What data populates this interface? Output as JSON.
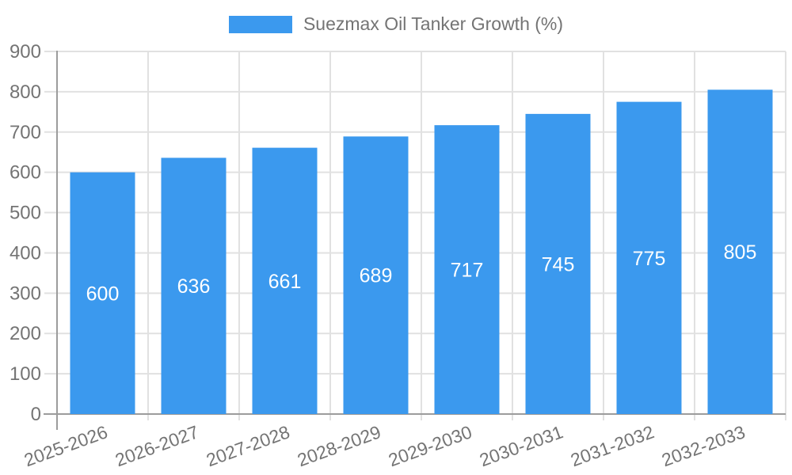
{
  "legend": {
    "label": "Suezmax Oil Tanker Growth (%)",
    "position": "top"
  },
  "chart_data": {
    "type": "bar",
    "title": "Suezmax Oil Tanker Growth (%)",
    "series_name": "Suezmax Oil Tanker Growth (%)",
    "categories": [
      "2025-2026",
      "2026-2027",
      "2027-2028",
      "2028-2029",
      "2029-2030",
      "2030-2031",
      "2031-2032",
      "2032-2033"
    ],
    "values": [
      600,
      636,
      661,
      689,
      717,
      745,
      775,
      805
    ],
    "value_labels": [
      "600",
      "636",
      "661",
      "689",
      "717",
      "745",
      "775",
      "805"
    ],
    "xlabel": "",
    "ylabel": "",
    "ylim": [
      0,
      900
    ],
    "ytick_step": 100,
    "yticks": [
      0,
      100,
      200,
      300,
      400,
      500,
      600,
      700,
      800,
      900
    ],
    "grid": true,
    "legend_position": "top",
    "x_label_rotation": -20,
    "colors": {
      "bar": "#3B99EE",
      "value_label": "#FFFFFF",
      "grid_line": "#E1E1E1",
      "axis_line": "#9C9C9C",
      "tick_text": "#747474"
    }
  }
}
